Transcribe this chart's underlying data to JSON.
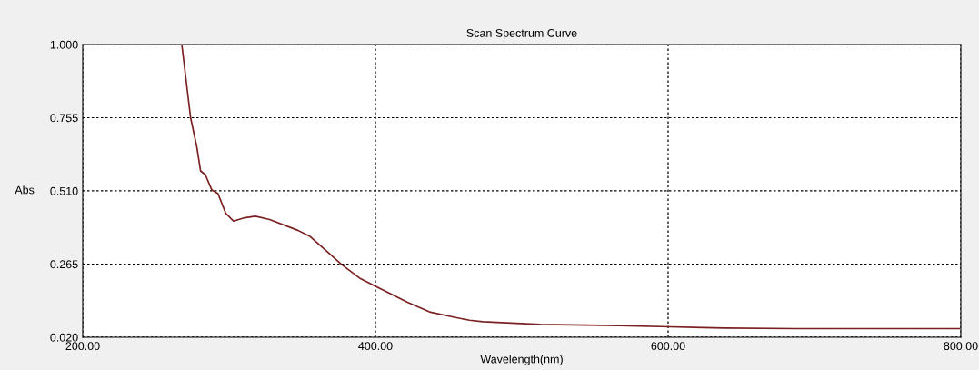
{
  "chart_data": {
    "type": "line",
    "title": "Scan Spectrum Curve",
    "xlabel": "Wavelength(nm)",
    "ylabel": "Abs",
    "series": [
      {
        "color": "#7b2020",
        "x": [
          267.7,
          273.7,
          278,
          280.5,
          283.8,
          288.1,
          292.4,
          297.7,
          303,
          310.6,
          318,
          327.7,
          347,
          355.5,
          366.2,
          377,
          389.8,
          400.5,
          421.9,
          436.9,
          454,
          464.3,
          473.3,
          512.6,
          566.2,
          601,
          638.5,
          687,
          799
        ],
        "values": [
          1.0,
          0.755,
          0.656,
          0.577,
          0.564,
          0.514,
          0.501,
          0.435,
          0.409,
          0.42,
          0.425,
          0.414,
          0.378,
          0.357,
          0.31,
          0.263,
          0.216,
          0.19,
          0.137,
          0.105,
          0.087,
          0.077,
          0.072,
          0.063,
          0.059,
          0.055,
          0.051,
          0.049,
          0.049
        ]
      }
    ],
    "xlim": [
      200,
      800
    ],
    "xticks": [
      {
        "value": 200,
        "label": "200.00"
      },
      {
        "value": 400,
        "label": "400.00"
      },
      {
        "value": 600,
        "label": "600.00"
      },
      {
        "value": 800,
        "label": "800.00"
      }
    ],
    "ylim": [
      0.02,
      1.0
    ],
    "yticks": [
      {
        "value": 0.02,
        "label": "0.020"
      },
      {
        "value": 0.265,
        "label": "0.265"
      },
      {
        "value": 0.51,
        "label": "0.510"
      },
      {
        "value": 0.755,
        "label": "0.755"
      },
      {
        "value": 1.0,
        "label": "1.000"
      }
    ],
    "grid": true,
    "line_style": "solid",
    "marker": "none"
  }
}
